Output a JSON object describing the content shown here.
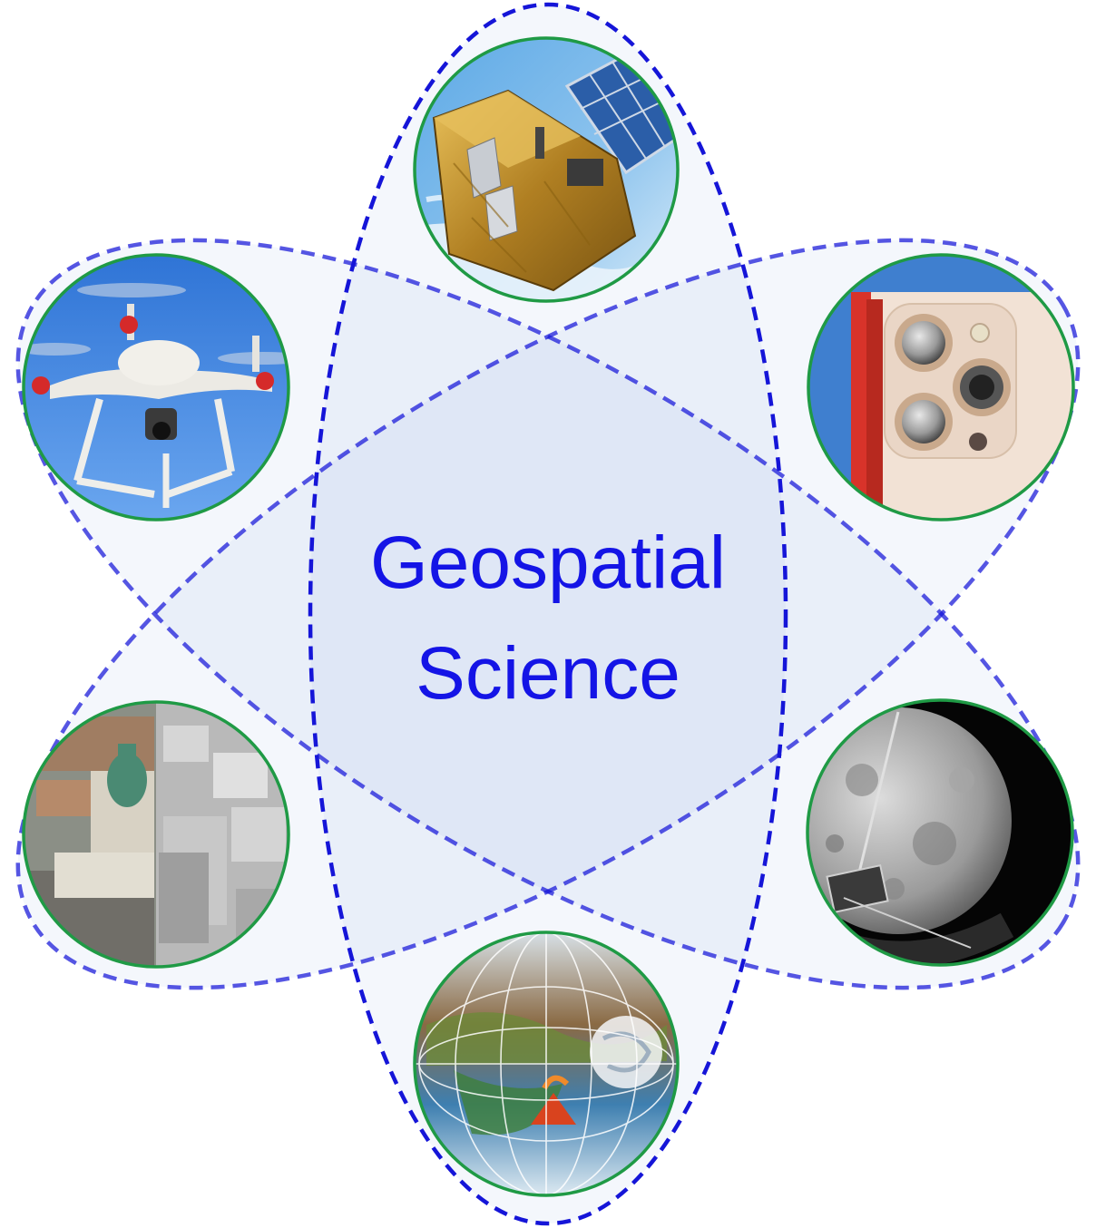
{
  "title": {
    "line1": "Geospatial",
    "line2": "Science"
  },
  "colors": {
    "orbit_stroke": "#1515d8",
    "orbit_fill": "#eef3fb",
    "title_text": "#1414e6",
    "image_ring": "#1f9a45"
  },
  "platforms": [
    {
      "id": "satellite",
      "icon": "satellite-icon"
    },
    {
      "id": "smartphone",
      "icon": "smartphone-camera-icon"
    },
    {
      "id": "planetary",
      "icon": "moon-probe-icon"
    },
    {
      "id": "earth",
      "icon": "earth-globe-icon"
    },
    {
      "id": "city-model",
      "icon": "3d-city-icon"
    },
    {
      "id": "drone",
      "icon": "drone-icon"
    }
  ]
}
